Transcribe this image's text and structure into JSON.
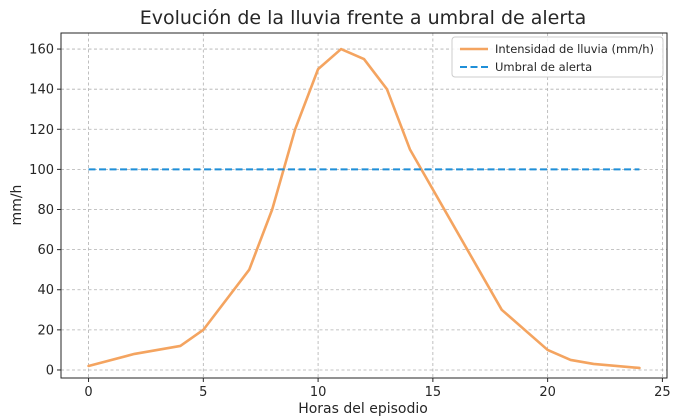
{
  "chart_data": {
    "type": "line",
    "title": "Evolución de la lluvia frente a umbral de alerta",
    "xlabel": "Horas del episodio",
    "ylabel": "mm/h",
    "xlim": [
      -1.2,
      25.2
    ],
    "ylim": [
      -4,
      168
    ],
    "xticks": [
      0,
      5,
      10,
      15,
      20,
      25
    ],
    "yticks": [
      0,
      20,
      40,
      60,
      80,
      100,
      120,
      140,
      160
    ],
    "grid": true,
    "legend_position": "top-right",
    "series": [
      {
        "name": "Intensidad de lluvia (mm/h)",
        "color": "#F4A460",
        "style": "solid",
        "x": [
          0,
          2,
          4,
          5,
          7,
          8,
          9,
          10,
          11,
          12,
          13,
          14,
          16,
          18,
          20,
          21,
          22,
          24
        ],
        "y": [
          2,
          8,
          12,
          20,
          50,
          80,
          120,
          150,
          160,
          155,
          140,
          110,
          70,
          30,
          10,
          5,
          3,
          1
        ]
      },
      {
        "name": "Umbral de alerta",
        "color": "#1F8FD8",
        "style": "dashed",
        "x": [
          0,
          24
        ],
        "y": [
          100,
          100
        ]
      }
    ]
  }
}
